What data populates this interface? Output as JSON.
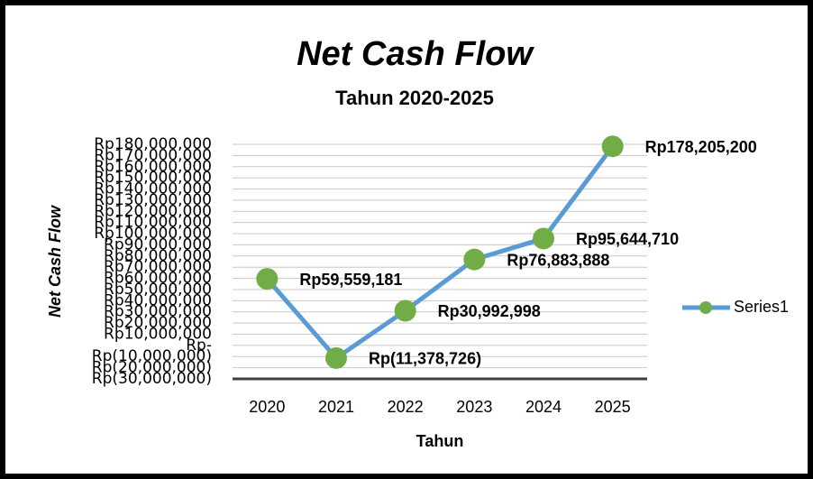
{
  "chart_data": {
    "type": "line",
    "title": "Net Cash Flow",
    "subtitle": "Tahun 2020-2025",
    "x_label": "Tahun",
    "y_label": "Net Cash Flow",
    "categories": [
      "2020",
      "2021",
      "2022",
      "2023",
      "2024",
      "2025"
    ],
    "series": [
      {
        "name": "Series1",
        "color": "#5b9bd5",
        "marker_color": "#70ad47",
        "values": [
          59559181,
          -11378726,
          30992998,
          76883888,
          95644710,
          178205200
        ],
        "value_labels": [
          "Rp59,559,181",
          "Rp(11,378,726)",
          "Rp30,992,998",
          "Rp76,883,888",
          "Rp95,644,710",
          "Rp178,205,200"
        ]
      }
    ],
    "ylim": [
      -30000000,
      180000000
    ],
    "yticks": [
      {
        "value": -30000000,
        "label": "Rp(30,000,000)"
      },
      {
        "value": -20000000,
        "label": "Rp(20,000,000)"
      },
      {
        "value": -10000000,
        "label": "Rp(10,000,000)"
      },
      {
        "value": 0,
        "label": "Rp-"
      },
      {
        "value": 10000000,
        "label": "Rp10,000,000"
      },
      {
        "value": 20000000,
        "label": "Rp20,000,000"
      },
      {
        "value": 30000000,
        "label": "Rp30,000,000"
      },
      {
        "value": 40000000,
        "label": "Rp40,000,000"
      },
      {
        "value": 50000000,
        "label": "Rp50,000,000"
      },
      {
        "value": 60000000,
        "label": "Rp60,000,000"
      },
      {
        "value": 70000000,
        "label": "Rp70,000,000"
      },
      {
        "value": 80000000,
        "label": "Rp80,000,000"
      },
      {
        "value": 90000000,
        "label": "Rp90,000,000"
      },
      {
        "value": 100000000,
        "label": "Rp100,000,000"
      },
      {
        "value": 110000000,
        "label": "Rp110,000,000"
      },
      {
        "value": 120000000,
        "label": "Rp120,000,000"
      },
      {
        "value": 130000000,
        "label": "Rp130,000,000"
      },
      {
        "value": 140000000,
        "label": "Rp140,000,000"
      },
      {
        "value": 150000000,
        "label": "Rp150,000,000"
      },
      {
        "value": 160000000,
        "label": "Rp160,000,000"
      },
      {
        "value": 170000000,
        "label": "Rp170,000,000"
      },
      {
        "value": 180000000,
        "label": "Rp180,000,000"
      }
    ],
    "grid": true,
    "legend": "right"
  }
}
